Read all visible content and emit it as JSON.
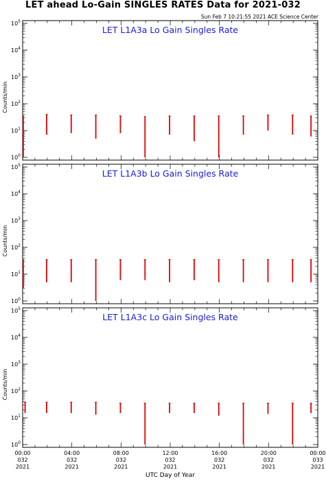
{
  "header": {
    "title": "LET ahead Lo-Gain SINGLES RATES Data for 2021-032",
    "timestamp": "Sun Feb  7 10:21:55 2021 ACE Science Center"
  },
  "colors": {
    "data": "#e00000",
    "panel_title": "#1a1adc"
  },
  "chart_data": [
    {
      "type": "line",
      "title": "LET L1A3a Lo Gain Singles Rate",
      "ylabel": "Counts/min",
      "yscale": "log",
      "ylim": [
        1,
        100000
      ],
      "xlim": [
        0,
        24
      ],
      "spikes": [
        {
          "x": 0.05,
          "low": 1,
          "high": 35
        },
        {
          "x": 1.95,
          "low": 7,
          "high": 40
        },
        {
          "x": 3.95,
          "low": 8,
          "high": 38
        },
        {
          "x": 5.95,
          "low": 5,
          "high": 38
        },
        {
          "x": 7.95,
          "low": 8,
          "high": 35
        },
        {
          "x": 9.95,
          "low": 1,
          "high": 33
        },
        {
          "x": 11.95,
          "low": 7,
          "high": 35
        },
        {
          "x": 13.95,
          "low": 4,
          "high": 35
        },
        {
          "x": 15.95,
          "low": 1,
          "high": 35
        },
        {
          "x": 17.95,
          "low": 7,
          "high": 35
        },
        {
          "x": 19.95,
          "low": 10,
          "high": 38
        },
        {
          "x": 21.95,
          "low": 7,
          "high": 38
        },
        {
          "x": 23.45,
          "low": 6,
          "high": 35
        }
      ]
    },
    {
      "type": "line",
      "title": "LET L1A3b Lo Gain Singles Rate",
      "ylabel": "Counts/min",
      "yscale": "log",
      "ylim": [
        1,
        100000
      ],
      "xlim": [
        0,
        24
      ],
      "spikes": [
        {
          "x": 0.05,
          "low": 3,
          "high": 35
        },
        {
          "x": 1.95,
          "low": 5,
          "high": 35
        },
        {
          "x": 3.95,
          "low": 5,
          "high": 35
        },
        {
          "x": 5.95,
          "low": 1,
          "high": 35
        },
        {
          "x": 7.95,
          "low": 6,
          "high": 35
        },
        {
          "x": 9.95,
          "low": 6,
          "high": 35
        },
        {
          "x": 11.95,
          "low": 5,
          "high": 35
        },
        {
          "x": 13.95,
          "low": 6,
          "high": 35
        },
        {
          "x": 15.95,
          "low": 5,
          "high": 35
        },
        {
          "x": 17.95,
          "low": 5,
          "high": 35
        },
        {
          "x": 19.95,
          "low": 5,
          "high": 35
        },
        {
          "x": 21.95,
          "low": 5,
          "high": 35
        },
        {
          "x": 23.45,
          "low": 5,
          "high": 35
        }
      ]
    },
    {
      "type": "line",
      "title": "LET L1A3c Lo Gain Singles Rate",
      "ylabel": "Counts/min",
      "yscale": "log",
      "ylim": [
        1,
        100000
      ],
      "xlim": [
        0,
        24
      ],
      "spikes": [
        {
          "x": 0.2,
          "low": 15,
          "high": 38
        },
        {
          "x": 1.95,
          "low": 15,
          "high": 38
        },
        {
          "x": 3.95,
          "low": 15,
          "high": 38
        },
        {
          "x": 5.95,
          "low": 13,
          "high": 38
        },
        {
          "x": 7.95,
          "low": 15,
          "high": 35
        },
        {
          "x": 9.95,
          "low": 1,
          "high": 35
        },
        {
          "x": 11.95,
          "low": 15,
          "high": 35
        },
        {
          "x": 13.95,
          "low": 15,
          "high": 35
        },
        {
          "x": 15.95,
          "low": 12,
          "high": 35
        },
        {
          "x": 17.95,
          "low": 1,
          "high": 35
        },
        {
          "x": 19.95,
          "low": 14,
          "high": 35
        },
        {
          "x": 21.95,
          "low": 1,
          "high": 35
        },
        {
          "x": 23.45,
          "low": 15,
          "high": 35
        }
      ]
    }
  ],
  "y_tick_labels": [
    "10^0",
    "10^1",
    "10^2",
    "10^3",
    "10^4",
    "10^5"
  ],
  "x_tick_labels": [
    {
      "time": "00:00",
      "day": "032",
      "year": "2021"
    },
    {
      "time": "04:00",
      "day": "032",
      "year": "2021"
    },
    {
      "time": "08:00",
      "day": "032",
      "year": "2021"
    },
    {
      "time": "12:00",
      "day": "032",
      "year": "2021"
    },
    {
      "time": "16:00",
      "day": "032",
      "year": "2021"
    },
    {
      "time": "20:00",
      "day": "032",
      "year": "2021"
    },
    {
      "time": "00:00",
      "day": "033",
      "year": "2021"
    }
  ],
  "xlabel": "UTC Day of Year"
}
